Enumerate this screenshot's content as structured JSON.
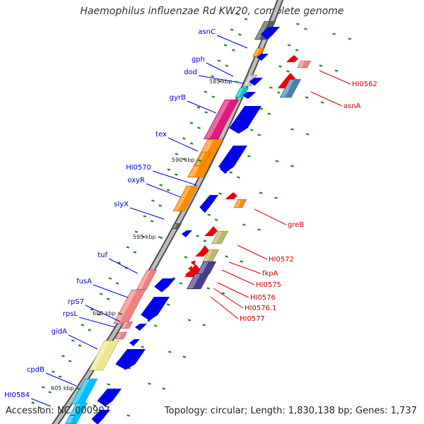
{
  "title": "Haemophilus influenzae Rd KW20, complete genome",
  "footer": {
    "accession": "Accession: NC_000907",
    "summary": "Topology: circular; Length: 1,830,138 bp; Genes: 1,737"
  },
  "colors": {
    "forward_label": "#0000cc",
    "reverse_label": "#cc0000",
    "backbone": "#888888",
    "tick": "#228b22"
  },
  "scale_labels": [
    "585 kbp",
    "590 kbp",
    "595 kbp",
    "600 kbp",
    "605 kbp"
  ],
  "forward_genes": [
    {
      "name": "asnC",
      "color": "#5a5a5a"
    },
    {
      "name": "gph",
      "color": "#ff8c00"
    },
    {
      "name": "dod",
      "color": "#c0c0c0"
    },
    {
      "name": "",
      "color": "#00c8c8"
    },
    {
      "name": "gyrB",
      "color": "#e0197a"
    },
    {
      "name": "tex",
      "color": "#ff8c00"
    },
    {
      "name": "HI0570",
      "color": "#ff8c00"
    },
    {
      "name": "oxyR",
      "color": "#ff8c00"
    },
    {
      "name": "slyX",
      "color": "#5a5a5a"
    },
    {
      "name": "tuf",
      "color": "#f08080"
    },
    {
      "name": "fusA",
      "color": "#f08080"
    },
    {
      "name": "rpS7",
      "color": "#f08080"
    },
    {
      "name": "rpsL",
      "color": "#f08080"
    },
    {
      "name": "gidA",
      "color": "#f0e68c"
    },
    {
      "name": "cpdB",
      "color": "#00bfff"
    },
    {
      "name": "HI0584",
      "color": "#00bfff"
    }
  ],
  "reverse_genes": [
    {
      "name": "",
      "color": "#ff0000"
    },
    {
      "name": "HI0562",
      "color": "#f08080"
    },
    {
      "name": "asnA",
      "color": "#4682b4"
    },
    {
      "name": "greB",
      "color": "#ff8c00"
    },
    {
      "name": "HI0572",
      "color": "#bdb76b"
    },
    {
      "name": "fkpA",
      "color": "#bdb76b"
    },
    {
      "name": "HI0575",
      "color": "#5a5a5a"
    },
    {
      "name": "HI0576",
      "color": "#483d8b"
    },
    {
      "name": "HI0576.1",
      "color": "#ff0000"
    },
    {
      "name": "HI0577",
      "color": "#ff0000"
    }
  ]
}
